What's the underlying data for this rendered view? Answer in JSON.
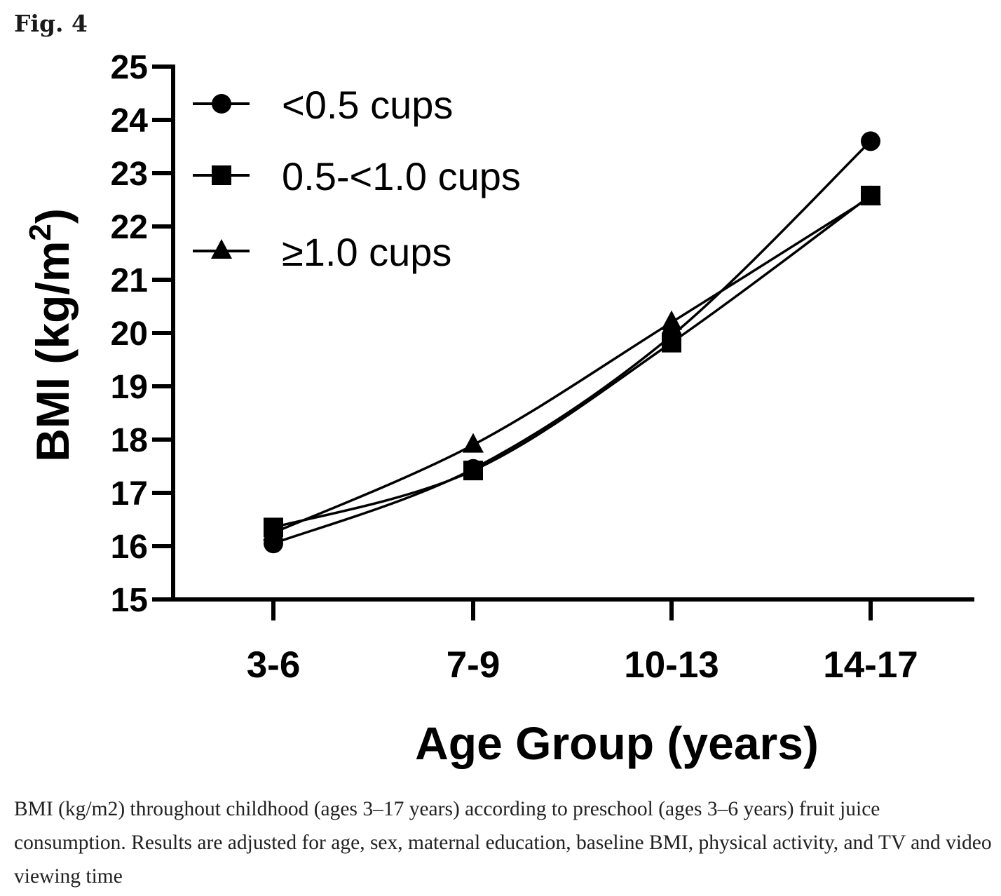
{
  "figure_label": "Fig. 4",
  "caption": "BMI (kg/m2) throughout childhood (ages 3–17 years) according to preschool (ages 3–6 years) fruit juice consumption. Results are adjusted for age, sex, maternal education, baseline BMI, physical activity, and TV and video viewing time",
  "chart_data": {
    "type": "line",
    "title": "",
    "xlabel": "Age Group (years)",
    "ylabel_main": "BMI (kg/m",
    "ylabel_sup": "2",
    "ylabel_close": ")",
    "categories": [
      "3-6",
      "7-9",
      "10-13",
      "14-17"
    ],
    "ylim": [
      15,
      25
    ],
    "yticks": [
      "15",
      "16",
      "17",
      "18",
      "19",
      "20",
      "21",
      "22",
      "23",
      "24",
      "25"
    ],
    "legend_position": "top-left",
    "series": [
      {
        "name": "<0.5 cups",
        "marker": "circle",
        "values": [
          16.05,
          17.45,
          19.95,
          23.6
        ]
      },
      {
        "name": "0.5-<1.0 cups",
        "marker": "square",
        "values": [
          16.35,
          17.42,
          19.82,
          22.58
        ]
      },
      {
        "name": "≥1.0 cups",
        "marker": "triangle",
        "values": [
          16.25,
          17.9,
          20.2,
          22.55
        ]
      }
    ],
    "line_color": "#000000"
  }
}
